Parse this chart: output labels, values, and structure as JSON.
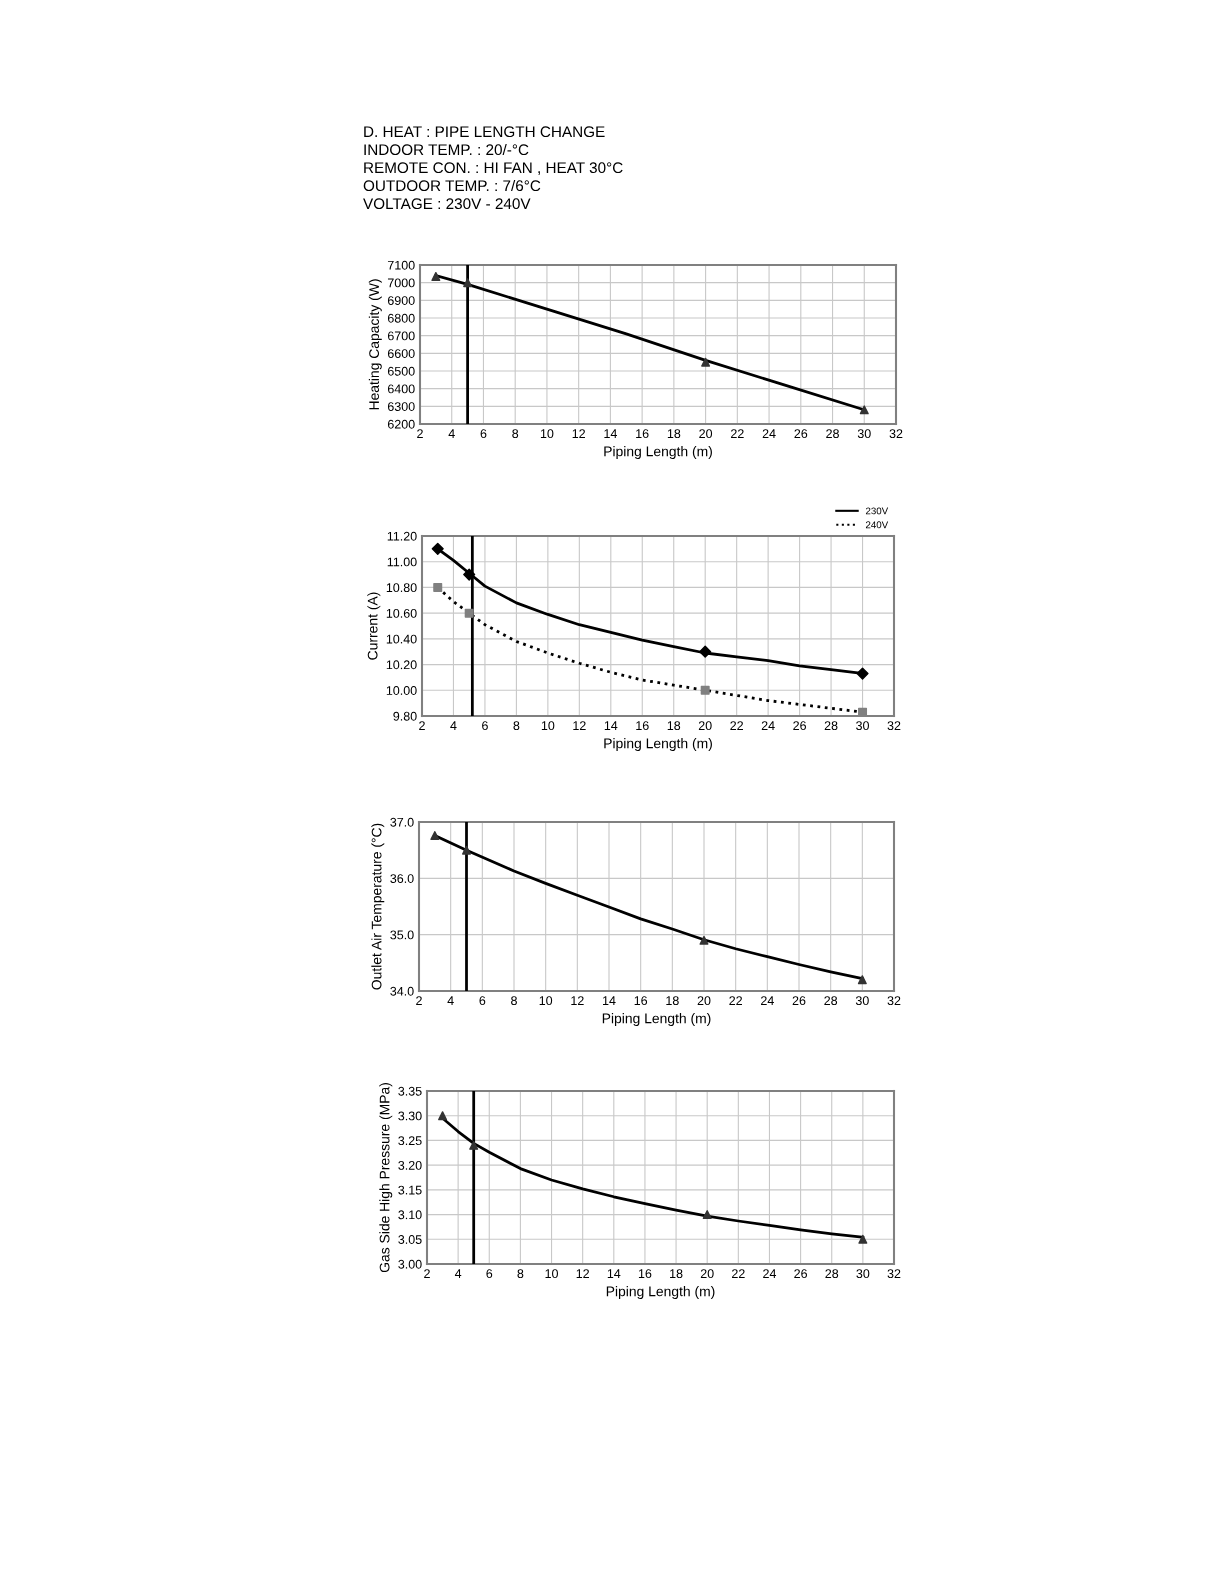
{
  "chart_data": [
    {
      "type": "line",
      "title": "D. HEAT : PIPE LENGTH CHANGE",
      "annotations": [
        "INDOOR TEMP. : 20/-°C",
        "REMOTE CON. : HI FAN , HEAT 30°C",
        "OUTDOOR TEMP. : 7/6°C",
        "VOLTAGE : 230V - 240V"
      ],
      "xlabel": "Piping Length (m)",
      "ylabel": "Heating Capacity (W)",
      "xlim": [
        2,
        32
      ],
      "xticks": [
        2,
        4,
        6,
        8,
        10,
        12,
        14,
        16,
        18,
        20,
        22,
        24,
        26,
        28,
        30,
        32
      ],
      "ylim": [
        6200,
        7100
      ],
      "yticks": [
        6200,
        6300,
        6400,
        6500,
        6600,
        6700,
        6800,
        6900,
        7000,
        7100
      ],
      "grid": true,
      "ref_lines": [
        {
          "axis": "x",
          "value": 5,
          "color": "#000000"
        }
      ],
      "series": [
        {
          "color": "#000000",
          "line_style": "solid",
          "marker": "none",
          "x": [
            3,
            5,
            10,
            15,
            20,
            25,
            30
          ],
          "values": [
            7040,
            6990,
            6850,
            6710,
            6560,
            6420,
            6280
          ]
        },
        {
          "type": "scatter",
          "color": "#333333",
          "marker": "triangle",
          "x": [
            3,
            5,
            20,
            30
          ],
          "values": [
            7035,
            7000,
            6550,
            6280
          ]
        }
      ]
    },
    {
      "type": "line",
      "xlabel": "Piping Length (m)",
      "ylabel": "Current (A)",
      "xlim": [
        2,
        32
      ],
      "xticks": [
        2,
        4,
        6,
        8,
        10,
        12,
        14,
        16,
        18,
        20,
        22,
        24,
        26,
        28,
        30,
        32
      ],
      "ylim": [
        9.8,
        11.2
      ],
      "yticks": [
        {
          "value": 9.8,
          "label": "9.80"
        },
        {
          "value": 10.0,
          "label": "10.00"
        },
        {
          "value": 10.2,
          "label": "10.20"
        },
        {
          "value": 10.4,
          "label": "10.40"
        },
        {
          "value": 10.6,
          "label": "10.60"
        },
        {
          "value": 10.8,
          "label": "10.80"
        },
        {
          "value": 11.0,
          "label": "11.00"
        },
        {
          "value": 11.2,
          "label": "11.20"
        }
      ],
      "grid": true,
      "legend": "top right",
      "ref_lines": [
        {
          "axis": "x",
          "value": 5.2,
          "color": "#000000"
        }
      ],
      "series": [
        {
          "name": "230V",
          "color": "#000000",
          "line_style": "solid",
          "marker": "none",
          "x": [
            3,
            4,
            5,
            6,
            8,
            10,
            12,
            14,
            16,
            18,
            20,
            22,
            24,
            26,
            28,
            30
          ],
          "values": [
            11.1,
            11.01,
            10.91,
            10.81,
            10.68,
            10.59,
            10.51,
            10.45,
            10.39,
            10.34,
            10.29,
            10.26,
            10.23,
            10.19,
            10.16,
            10.13
          ]
        },
        {
          "name": "240V",
          "color": "#000000",
          "line_style": "dotted",
          "marker": "none",
          "x": [
            3,
            4,
            5,
            6,
            8,
            10,
            12,
            14,
            16,
            18,
            20,
            22,
            24,
            26,
            28,
            30
          ],
          "values": [
            10.8,
            10.69,
            10.6,
            10.51,
            10.38,
            10.29,
            10.21,
            10.14,
            10.08,
            10.04,
            10.0,
            9.96,
            9.92,
            9.89,
            9.86,
            9.83
          ]
        },
        {
          "type": "scatter",
          "color": "#000000",
          "marker": "diamond",
          "x": [
            3,
            5,
            20,
            30
          ],
          "values": [
            11.1,
            10.9,
            10.3,
            10.13
          ]
        },
        {
          "type": "scatter",
          "color": "#808080",
          "marker": "square",
          "x": [
            3,
            5,
            20,
            30
          ],
          "values": [
            10.8,
            10.6,
            10.0,
            9.83
          ]
        }
      ]
    },
    {
      "type": "line",
      "xlabel": "Piping Length (m)",
      "ylabel": "Outlet Air Temperature (°C)",
      "xlim": [
        2,
        32
      ],
      "xticks": [
        2,
        4,
        6,
        8,
        10,
        12,
        14,
        16,
        18,
        20,
        22,
        24,
        26,
        28,
        30,
        32
      ],
      "ylim": [
        34.0,
        37.0
      ],
      "yticks": [
        {
          "value": 34,
          "label": "34.0"
        },
        {
          "value": 35,
          "label": "35.0"
        },
        {
          "value": 36,
          "label": "36.0"
        },
        {
          "value": 37,
          "label": "37.0"
        }
      ],
      "grid": true,
      "ref_lines": [
        {
          "axis": "x",
          "value": 5,
          "color": "#000000"
        }
      ],
      "series": [
        {
          "color": "#000000",
          "line_style": "solid",
          "marker": "none",
          "x": [
            3,
            5,
            8,
            10,
            12,
            14,
            16,
            18,
            20,
            22,
            24,
            26,
            28,
            30
          ],
          "values": [
            36.76,
            36.5,
            36.13,
            35.91,
            35.7,
            35.49,
            35.28,
            35.1,
            34.91,
            34.75,
            34.61,
            34.47,
            34.34,
            34.22
          ]
        },
        {
          "type": "scatter",
          "color": "#333333",
          "marker": "triangle",
          "x": [
            3,
            5,
            20,
            30
          ],
          "values": [
            36.76,
            36.5,
            34.9,
            34.2
          ]
        }
      ]
    },
    {
      "type": "line",
      "xlabel": "Piping Length (m)",
      "ylabel": "Gas Side High Pressure (MPa)",
      "xlim": [
        2,
        32
      ],
      "xticks": [
        2,
        4,
        6,
        8,
        10,
        12,
        14,
        16,
        18,
        20,
        22,
        24,
        26,
        28,
        30,
        32
      ],
      "ylim": [
        3.0,
        3.35
      ],
      "yticks": [
        {
          "value": 3.0,
          "label": "3.00"
        },
        {
          "value": 3.05,
          "label": "3.05"
        },
        {
          "value": 3.1,
          "label": "3.10"
        },
        {
          "value": 3.15,
          "label": "3.15"
        },
        {
          "value": 3.2,
          "label": "3.20"
        },
        {
          "value": 3.25,
          "label": "3.25"
        },
        {
          "value": 3.3,
          "label": "3.30"
        },
        {
          "value": 3.35,
          "label": "3.35"
        }
      ],
      "grid": true,
      "ref_lines": [
        {
          "axis": "x",
          "value": 5,
          "color": "#000000"
        }
      ],
      "series": [
        {
          "color": "#000000",
          "line_style": "solid",
          "marker": "none",
          "x": [
            3,
            4,
            5,
            6,
            8,
            10,
            12,
            14,
            16,
            18,
            20,
            22,
            24,
            26,
            28,
            30
          ],
          "values": [
            3.295,
            3.268,
            3.244,
            3.226,
            3.193,
            3.17,
            3.152,
            3.136,
            3.122,
            3.109,
            3.097,
            3.087,
            3.078,
            3.069,
            3.061,
            3.054
          ]
        },
        {
          "type": "scatter",
          "color": "#333333",
          "marker": "triangle",
          "x": [
            3,
            5,
            20,
            30
          ],
          "values": [
            3.3,
            3.24,
            3.1,
            3.05
          ]
        }
      ]
    }
  ]
}
